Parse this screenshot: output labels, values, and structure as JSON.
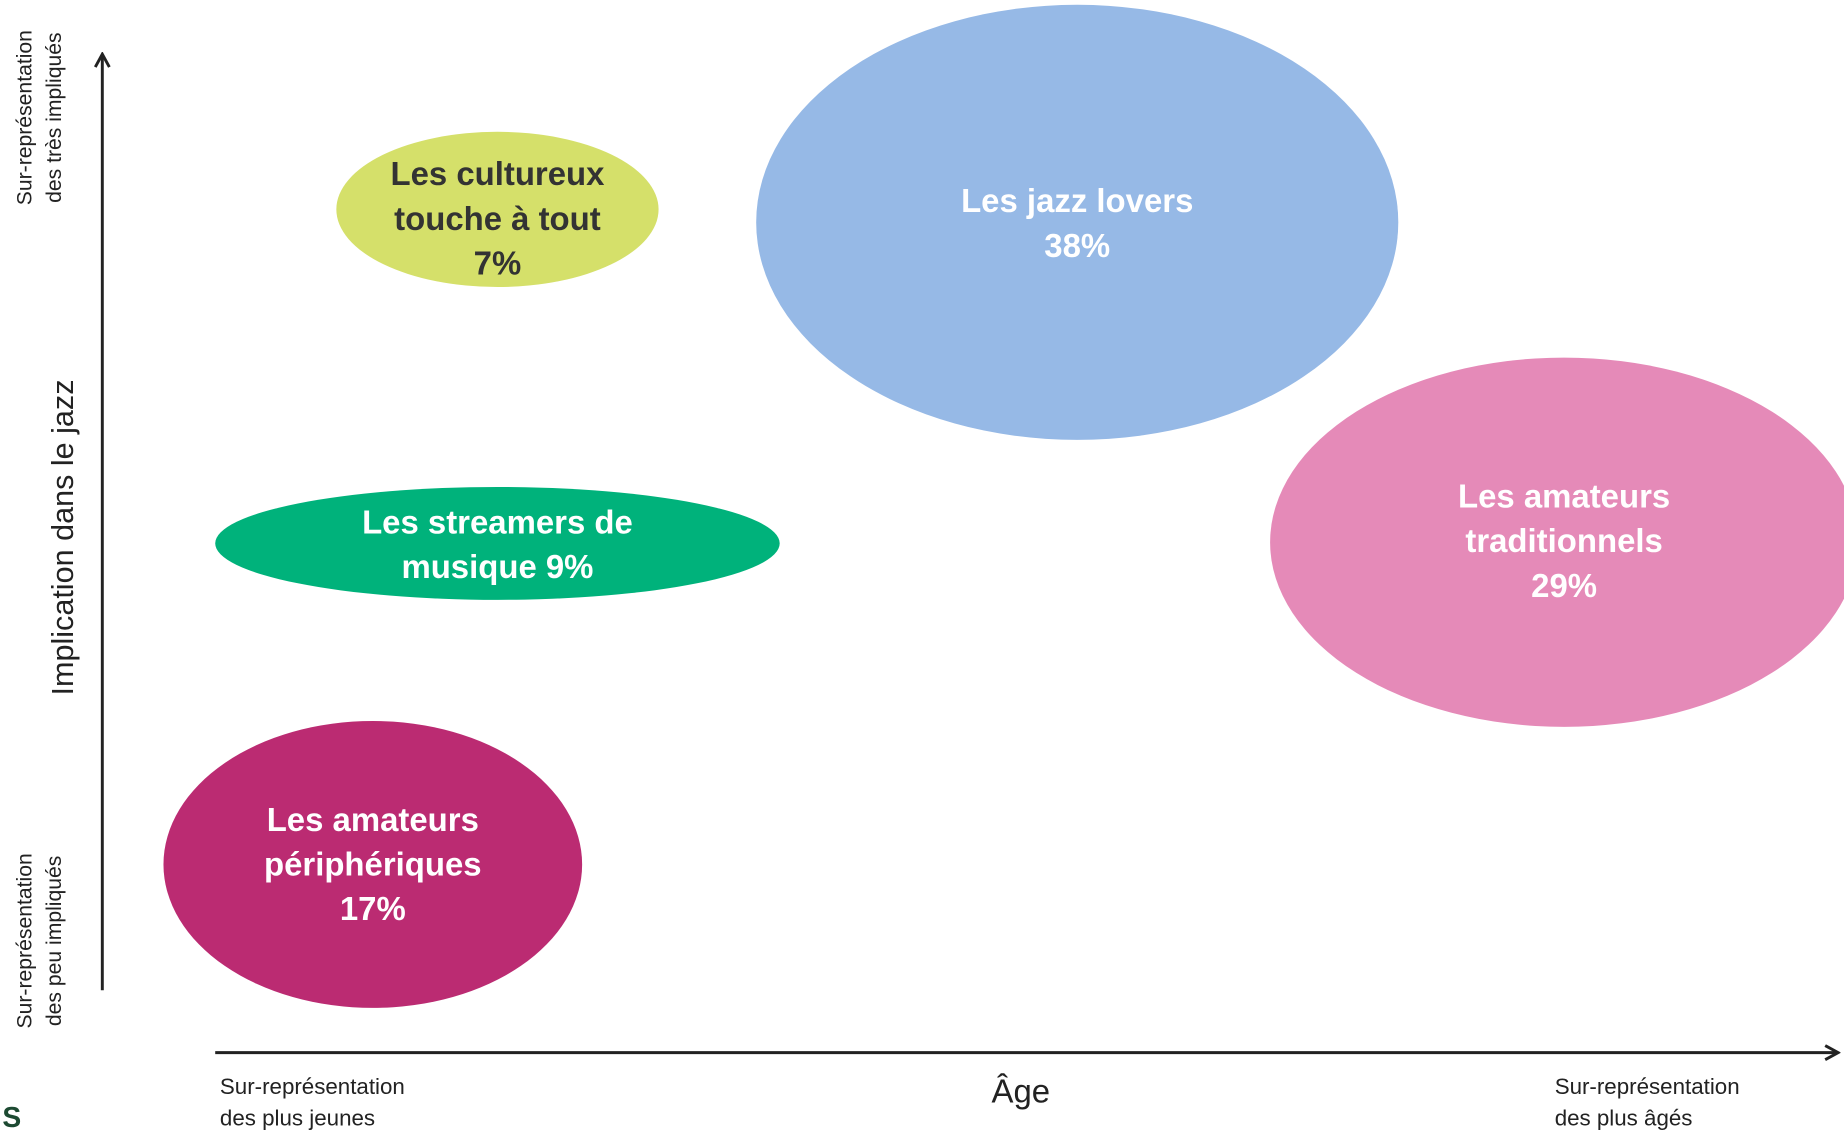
{
  "axes": {
    "y_title": "Implication dans le jazz",
    "y_top": [
      "Sur-représentation",
      "des très impliqués"
    ],
    "y_bottom": [
      "Sur-représentation",
      "des peu impliqués"
    ],
    "x_title": "Âge",
    "x_left": [
      "Sur-représentation",
      "des plus jeunes"
    ],
    "x_right": [
      "Sur-représentation",
      "des plus âgés"
    ]
  },
  "nodes": [
    {
      "label": [
        "Les cultureux",
        "touche à tout",
        "7%"
      ],
      "color": "#d5e06a",
      "text_color": "#333333"
    },
    {
      "label": [
        "Les jazz lovers",
        "38%"
      ],
      "color": "#96b9e6",
      "text_color": "#ffffff"
    },
    {
      "label": [
        "Les streamers de",
        "musique 9%"
      ],
      "color": "#00b27b",
      "text_color": "#ffffff"
    },
    {
      "label": [
        "Les amateurs",
        "traditionnels",
        "29%"
      ],
      "color": "#e58ab8",
      "text_color": "#ffffff"
    },
    {
      "label": [
        "Les amateurs",
        "périphériques",
        "17%"
      ],
      "color": "#bb2b72",
      "text_color": "#ffffff"
    }
  ],
  "logo": "S"
}
